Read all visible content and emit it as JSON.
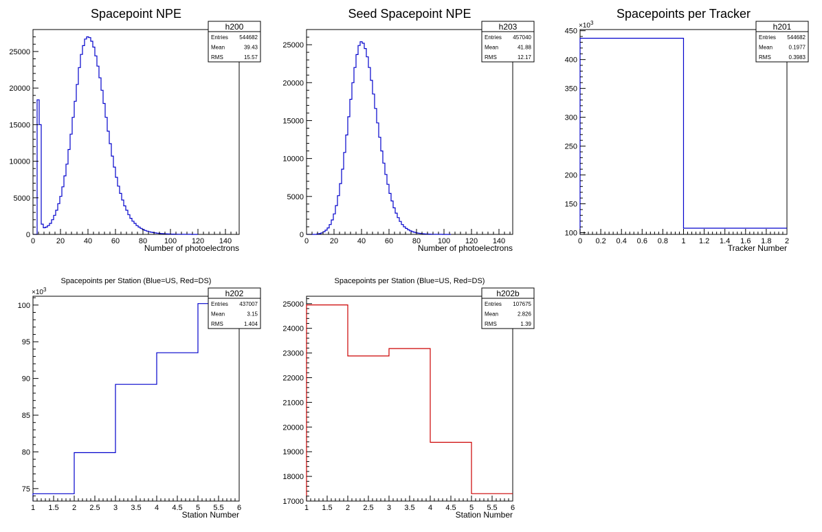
{
  "chart_data": [
    {
      "type": "histogram",
      "title": "Spacepoint NPE",
      "xlabel": "Number of photoelectrons",
      "ylabel": "",
      "xlim": [
        0,
        150
      ],
      "ylim": [
        0,
        28000
      ],
      "xticks": [
        0,
        20,
        40,
        60,
        80,
        100,
        120,
        140
      ],
      "yticks": [
        0,
        5000,
        10000,
        15000,
        20000,
        25000
      ],
      "ytick_labels": [
        "0",
        "5000",
        "10000",
        "15000",
        "20000",
        "25000"
      ],
      "exponent": "",
      "color": "#0000cc",
      "bin_width": 1.5,
      "values": [
        0,
        0,
        18400,
        15000,
        1400,
        900,
        1000,
        1200,
        1500,
        2000,
        2600,
        3300,
        4200,
        5200,
        6500,
        8000,
        9600,
        11600,
        13700,
        16000,
        18200,
        20500,
        22800,
        24600,
        25800,
        26700,
        27000,
        26900,
        26400,
        25600,
        24400,
        23000,
        21400,
        19700,
        17900,
        16000,
        14100,
        12400,
        10700,
        9200,
        7800,
        6600,
        5600,
        4700,
        3900,
        3300,
        2700,
        2200,
        1800,
        1500,
        1200,
        1000,
        820,
        670,
        540,
        440,
        360,
        290,
        240,
        200,
        160,
        130,
        110,
        90,
        75,
        60,
        50,
        40,
        33,
        27,
        22,
        18,
        14,
        11,
        9,
        7,
        5,
        4,
        3,
        2
      ],
      "stats": {
        "name": "h200",
        "entries": "544682",
        "mean": "39.43",
        "rms": "15.57"
      }
    },
    {
      "type": "histogram",
      "title": "Seed Spacepoint NPE",
      "xlabel": "Number of photoelectrons",
      "ylabel": "",
      "xlim": [
        0,
        150
      ],
      "ylim": [
        0,
        27000
      ],
      "xticks": [
        0,
        20,
        40,
        60,
        80,
        100,
        120,
        140
      ],
      "yticks": [
        0,
        5000,
        10000,
        15000,
        20000,
        25000
      ],
      "ytick_labels": [
        "0",
        "5000",
        "10000",
        "15000",
        "20000",
        "25000"
      ],
      "exponent": "",
      "color": "#0000cc",
      "bin_width": 1.5,
      "values": [
        0,
        0,
        0,
        0,
        0,
        50,
        100,
        200,
        350,
        550,
        850,
        1300,
        1900,
        2700,
        3800,
        5100,
        6700,
        8600,
        10800,
        13100,
        15500,
        17800,
        20000,
        22000,
        23700,
        24900,
        25400,
        25200,
        24500,
        23400,
        22000,
        20300,
        18500,
        16600,
        14700,
        12800,
        11000,
        9400,
        7900,
        6600,
        5400,
        4400,
        3500,
        2800,
        2200,
        1700,
        1300,
        1000,
        780,
        600,
        460,
        350,
        270,
        200,
        150,
        115,
        85,
        65,
        48,
        36,
        27,
        20,
        15,
        11,
        8,
        6,
        4,
        3,
        2,
        1
      ],
      "stats": {
        "name": "h203",
        "entries": "457040",
        "mean": "41.88",
        "rms": "12.17"
      }
    },
    {
      "type": "histogram",
      "title": "Spacepoints per Tracker",
      "xlabel": "Tracker Number",
      "ylabel": "",
      "xlim": [
        0,
        2
      ],
      "ylim": [
        97000,
        452000
      ],
      "xticks": [
        0,
        0.2,
        0.4,
        0.6,
        0.8,
        1,
        1.2,
        1.4,
        1.6,
        1.8,
        2
      ],
      "yticks": [
        100000,
        150000,
        200000,
        250000,
        300000,
        350000,
        400000,
        450000
      ],
      "ytick_labels": [
        "100",
        "150",
        "200",
        "250",
        "300",
        "350",
        "400",
        "450"
      ],
      "exponent": "3",
      "color": "#0000cc",
      "bin_edges": [
        0,
        1,
        2
      ],
      "values": [
        437007,
        107675
      ],
      "stats": {
        "name": "h201",
        "entries": "544682",
        "mean": "0.1977",
        "rms": "0.3983"
      }
    },
    {
      "type": "histogram",
      "title": "Spacepoints per Station (Blue=US, Red=DS)",
      "xlabel": "Station Number",
      "ylabel": "",
      "xlim": [
        1,
        6
      ],
      "ylim": [
        73300,
        101200
      ],
      "xticks": [
        1,
        1.5,
        2,
        2.5,
        3,
        3.5,
        4,
        4.5,
        5,
        5.5,
        6
      ],
      "yticks": [
        75000,
        80000,
        85000,
        90000,
        95000,
        100000
      ],
      "ytick_labels": [
        "75",
        "80",
        "85",
        "90",
        "95",
        "100"
      ],
      "exponent": "3",
      "color": "#0000cc",
      "bin_edges": [
        1,
        2,
        3,
        4,
        5,
        6
      ],
      "values": [
        74300,
        79900,
        89200,
        93500,
        100200
      ],
      "stats": {
        "name": "h202",
        "entries": "437007",
        "mean": "3.15",
        "rms": "1.404"
      }
    },
    {
      "type": "histogram",
      "title": "Spacepoints per Station (Blue=US, Red=DS)",
      "xlabel": "Station Number",
      "ylabel": "",
      "xlim": [
        1,
        6
      ],
      "ylim": [
        17000,
        25300
      ],
      "xticks": [
        1,
        1.5,
        2,
        2.5,
        3,
        3.5,
        4,
        4.5,
        5,
        5.5,
        6
      ],
      "yticks": [
        17000,
        18000,
        19000,
        20000,
        21000,
        22000,
        23000,
        24000,
        25000
      ],
      "ytick_labels": [
        "17000",
        "18000",
        "19000",
        "20000",
        "21000",
        "22000",
        "23000",
        "24000",
        "25000"
      ],
      "exponent": "",
      "color": "#cc0000",
      "bin_edges": [
        1,
        2,
        3,
        4,
        5,
        6
      ],
      "values": [
        24950,
        22880,
        23180,
        19380,
        17300
      ],
      "stats": {
        "name": "h202b",
        "entries": "107675",
        "mean": "2.826",
        "rms": "1.39"
      }
    }
  ],
  "stat_labels": {
    "entries": "Entries",
    "mean": "Mean",
    "rms": "RMS"
  }
}
